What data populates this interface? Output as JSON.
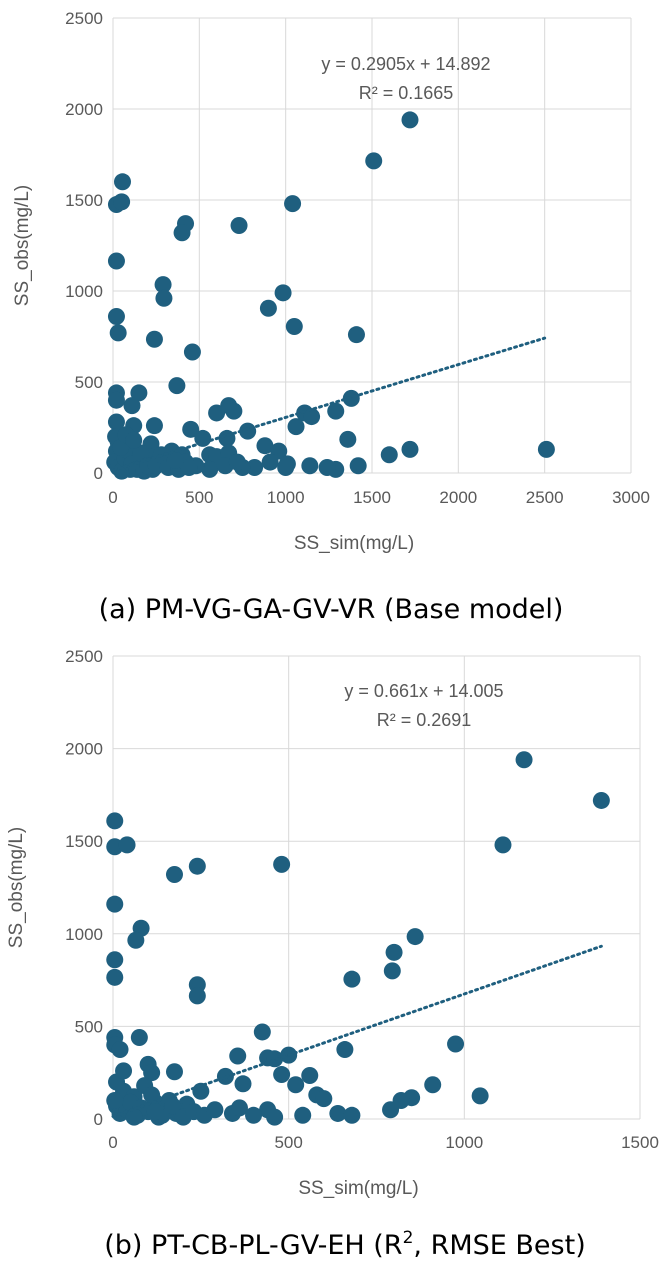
{
  "colors": {
    "marker": "#1f5f7f",
    "trend": "#1f5f7f",
    "grid": "#d9d9d9",
    "text": "#595959"
  },
  "chart_data": [
    {
      "type": "scatter",
      "caption": "(a) PM-VG-GA-GV-VR (Base model)",
      "xlabel": "SS_sim(mg/L)",
      "ylabel": "SS_obs(mg/L)",
      "xlim": [
        0,
        3000
      ],
      "ylim": [
        0,
        2500
      ],
      "xticks": [
        "0",
        "500",
        "1000",
        "1500",
        "2000",
        "2500",
        "3000"
      ],
      "yticks": [
        "0",
        "500",
        "1000",
        "1500",
        "2000",
        "2500"
      ],
      "grid": true,
      "trendline": {
        "slope": 0.2905,
        "intercept": 14.892,
        "x_range": [
          0,
          2500
        ],
        "style": "dotted"
      },
      "equation": "y = 0.2905x + 14.892",
      "r2": "R² = 0.1665",
      "points": [
        [
          1720,
          1940
        ],
        [
          1510,
          1715
        ],
        [
          55,
          1600
        ],
        [
          20,
          1475
        ],
        [
          50,
          1490
        ],
        [
          1040,
          1480
        ],
        [
          420,
          1370
        ],
        [
          730,
          1360
        ],
        [
          400,
          1320
        ],
        [
          20,
          1165
        ],
        [
          290,
          1035
        ],
        [
          985,
          990
        ],
        [
          295,
          960
        ],
        [
          900,
          905
        ],
        [
          20,
          860
        ],
        [
          1050,
          805
        ],
        [
          30,
          770
        ],
        [
          1410,
          760
        ],
        [
          240,
          735
        ],
        [
          460,
          665
        ],
        [
          370,
          480
        ],
        [
          20,
          440
        ],
        [
          150,
          440
        ],
        [
          20,
          400
        ],
        [
          1380,
          410
        ],
        [
          110,
          370
        ],
        [
          670,
          370
        ],
        [
          700,
          340
        ],
        [
          1110,
          330
        ],
        [
          1150,
          310
        ],
        [
          1290,
          340
        ],
        [
          600,
          330
        ],
        [
          1060,
          255
        ],
        [
          20,
          280
        ],
        [
          120,
          260
        ],
        [
          240,
          260
        ],
        [
          450,
          240
        ],
        [
          780,
          230
        ],
        [
          1360,
          185
        ],
        [
          520,
          190
        ],
        [
          660,
          190
        ],
        [
          30,
          170
        ],
        [
          80,
          160
        ],
        [
          220,
          160
        ],
        [
          340,
          120
        ],
        [
          880,
          150
        ],
        [
          960,
          120
        ],
        [
          2510,
          130
        ],
        [
          1720,
          130
        ],
        [
          1600,
          100
        ],
        [
          400,
          100
        ],
        [
          560,
          100
        ],
        [
          600,
          90
        ],
        [
          670,
          110
        ],
        [
          910,
          60
        ],
        [
          1010,
          50
        ],
        [
          1140,
          40
        ],
        [
          1290,
          20
        ],
        [
          1420,
          40
        ],
        [
          1240,
          30
        ],
        [
          1000,
          30
        ],
        [
          820,
          30
        ],
        [
          750,
          30
        ],
        [
          560,
          20
        ],
        [
          480,
          40
        ],
        [
          300,
          50
        ],
        [
          20,
          120
        ],
        [
          40,
          90
        ],
        [
          60,
          60
        ],
        [
          80,
          40
        ],
        [
          100,
          20
        ],
        [
          130,
          100
        ],
        [
          150,
          70
        ],
        [
          170,
          30
        ],
        [
          190,
          50
        ],
        [
          210,
          90
        ],
        [
          230,
          20
        ],
        [
          260,
          60
        ],
        [
          10,
          60
        ],
        [
          30,
          30
        ],
        [
          50,
          10
        ],
        [
          70,
          80
        ],
        [
          90,
          120
        ],
        [
          110,
          50
        ],
        [
          140,
          20
        ],
        [
          160,
          110
        ],
        [
          180,
          10
        ],
        [
          200,
          40
        ],
        [
          15,
          200
        ],
        [
          45,
          140
        ],
        [
          75,
          210
        ],
        [
          120,
          180
        ],
        [
          250,
          40
        ],
        [
          280,
          100
        ],
        [
          320,
          30
        ],
        [
          380,
          20
        ],
        [
          420,
          60
        ],
        [
          440,
          30
        ],
        [
          360,
          70
        ],
        [
          650,
          40
        ],
        [
          720,
          60
        ]
      ]
    },
    {
      "type": "scatter",
      "caption": "(b) PT-CB-PL-GV-EH (R",
      "caption_sup": "2",
      "caption_tail": ", RMSE Best)",
      "xlabel": "SS_sim(mg/L)",
      "ylabel": "SS_obs(mg/L)",
      "xlim": [
        0,
        1500
      ],
      "ylim": [
        0,
        2500
      ],
      "xticks": [
        "0",
        "500",
        "1000",
        "1500"
      ],
      "yticks": [
        "0",
        "500",
        "1000",
        "1500",
        "2000",
        "2500"
      ],
      "grid": true,
      "trendline": {
        "slope": 0.661,
        "intercept": 14.005,
        "x_range": [
          0,
          1390
        ],
        "style": "dotted"
      },
      "equation": "y = 0.661x + 14.005",
      "r2": "R² = 0.2691",
      "points": [
        [
          1170,
          1940
        ],
        [
          1390,
          1720
        ],
        [
          5,
          1610
        ],
        [
          5,
          1470
        ],
        [
          40,
          1480
        ],
        [
          1110,
          1480
        ],
        [
          480,
          1375
        ],
        [
          240,
          1365
        ],
        [
          175,
          1320
        ],
        [
          5,
          1160
        ],
        [
          80,
          1030
        ],
        [
          65,
          965
        ],
        [
          860,
          985
        ],
        [
          800,
          900
        ],
        [
          5,
          860
        ],
        [
          795,
          800
        ],
        [
          5,
          765
        ],
        [
          680,
          755
        ],
        [
          240,
          725
        ],
        [
          240,
          665
        ],
        [
          425,
          470
        ],
        [
          75,
          440
        ],
        [
          5,
          440
        ],
        [
          5,
          400
        ],
        [
          20,
          375
        ],
        [
          975,
          405
        ],
        [
          660,
          375
        ],
        [
          355,
          340
        ],
        [
          440,
          330
        ],
        [
          460,
          325
        ],
        [
          500,
          345
        ],
        [
          100,
          295
        ],
        [
          175,
          255
        ],
        [
          110,
          250
        ],
        [
          560,
          235
        ],
        [
          320,
          230
        ],
        [
          480,
          240
        ],
        [
          370,
          190
        ],
        [
          520,
          185
        ],
        [
          910,
          185
        ],
        [
          580,
          130
        ],
        [
          600,
          110
        ],
        [
          1045,
          125
        ],
        [
          850,
          115
        ],
        [
          820,
          100
        ],
        [
          790,
          50
        ],
        [
          640,
          30
        ],
        [
          680,
          20
        ],
        [
          540,
          20
        ],
        [
          440,
          50
        ],
        [
          400,
          20
        ],
        [
          460,
          10
        ],
        [
          250,
          150
        ],
        [
          30,
          150
        ],
        [
          60,
          120
        ],
        [
          90,
          180
        ],
        [
          120,
          90
        ],
        [
          150,
          60
        ],
        [
          180,
          30
        ],
        [
          210,
          80
        ],
        [
          10,
          70
        ],
        [
          20,
          30
        ],
        [
          40,
          50
        ],
        [
          70,
          20
        ],
        [
          100,
          40
        ],
        [
          130,
          10
        ],
        [
          160,
          100
        ],
        [
          190,
          40
        ],
        [
          10,
          200
        ],
        [
          50,
          90
        ],
        [
          80,
          60
        ],
        [
          110,
          130
        ],
        [
          140,
          20
        ],
        [
          170,
          70
        ],
        [
          200,
          10
        ],
        [
          230,
          40
        ],
        [
          260,
          20
        ],
        [
          290,
          50
        ],
        [
          340,
          30
        ],
        [
          360,
          60
        ],
        [
          30,
          260
        ],
        [
          5,
          100
        ],
        [
          60,
          10
        ],
        [
          120,
          40
        ]
      ]
    }
  ]
}
